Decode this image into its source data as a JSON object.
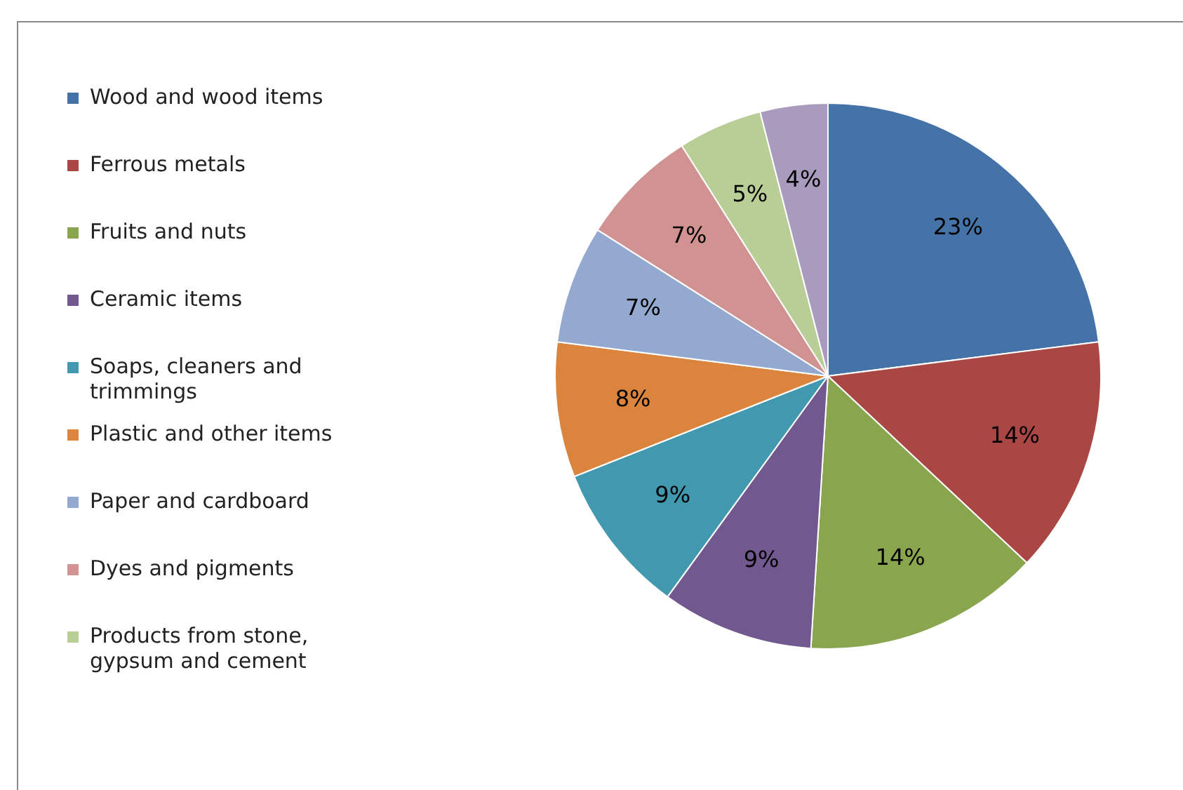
{
  "chart_data": {
    "type": "pie",
    "legend": "left",
    "value_labels": [
      "23%",
      "14%",
      "14%",
      "9%",
      "9%",
      "8%",
      "7%",
      "7%",
      "5%",
      "4%"
    ],
    "categories": [
      "Wood and wood items",
      "Ferrous metals",
      "Fruits and nuts",
      "Ceramic items",
      "Soaps, cleaners and trimmings",
      "Plastic and other items",
      "Paper and cardboard",
      "Dyes and pigments",
      "Products from stone, gypsum and cement",
      null
    ],
    "values": [
      23,
      14,
      14,
      9,
      9,
      8,
      7,
      7,
      5,
      4
    ],
    "colors": [
      "#4572a7",
      "#aa4643",
      "#89a54e",
      "#71588f",
      "#4198af",
      "#db843d",
      "#93a9cf",
      "#d19392",
      "#b9cd96",
      "#a99bbd"
    ]
  }
}
